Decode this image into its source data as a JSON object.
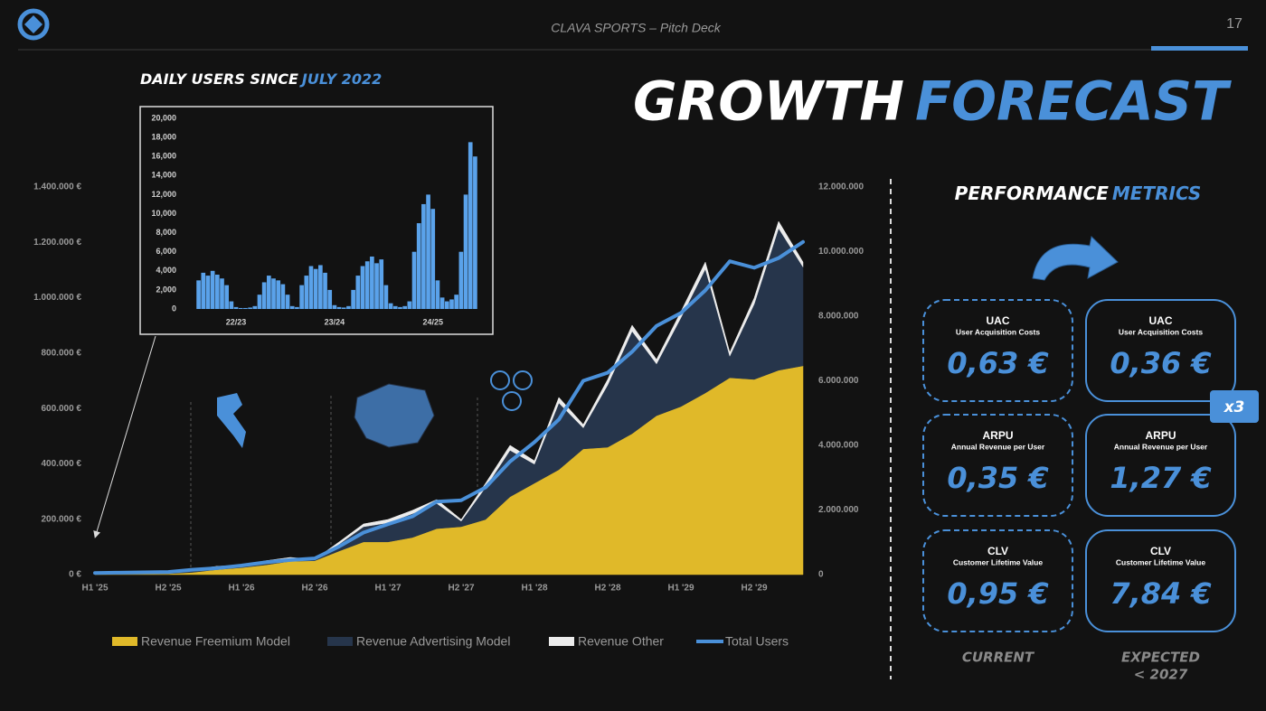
{
  "header": {
    "title": "CLAVA SPORTS – Pitch Deck",
    "page": "17"
  },
  "headline": [
    "GROWTH",
    "FORECAST"
  ],
  "chart_data": [
    {
      "type": "area",
      "categories": [
        "H1 '25",
        null,
        null,
        "H2 '25",
        null,
        null,
        "H1 '26",
        null,
        null,
        "H2 '26",
        null,
        null,
        "H1 '27",
        null,
        null,
        "H2 '27",
        null,
        null,
        "H1 '28",
        null,
        null,
        "H2 '28",
        null,
        null,
        "H1 '29",
        null,
        null,
        "H2 '29",
        null,
        null
      ],
      "series": [
        {
          "name": "Revenue Freemium Model",
          "type": "area",
          "color": "#e0b929",
          "values": [
            1000,
            1500,
            2000,
            3000,
            8000,
            18000,
            25000,
            35000,
            48000,
            50000,
            85000,
            118000,
            118000,
            134000,
            166000,
            173000,
            199000,
            281000,
            330000,
            379000,
            454000,
            460000,
            509000,
            574000,
            607000,
            656000,
            711000,
            705000,
            738000,
            754000
          ]
        },
        {
          "name": "Revenue Advertising Model",
          "type": "area",
          "color": "#26354b",
          "values": [
            2000,
            2500,
            3000,
            4000,
            7000,
            8000,
            6000,
            10000,
            8000,
            3000,
            25000,
            55000,
            69000,
            86000,
            91000,
            20000,
            116000,
            168000,
            69000,
            241000,
            76000,
            225000,
            370000,
            187000,
            321000,
            448000,
            78000,
            272000,
            513000,
            357000
          ]
        },
        {
          "name": "Revenue Other",
          "type": "area",
          "color": "#ececec",
          "values": [
            1000,
            1000,
            1000,
            1000,
            3000,
            4000,
            3000,
            5000,
            6000,
            2000,
            8000,
            10000,
            12000,
            12000,
            14000,
            6000,
            15000,
            18000,
            12000,
            20000,
            12000,
            20000,
            22000,
            16000,
            22000,
            25000,
            14000,
            22000,
            25000,
            18000
          ]
        },
        {
          "name": "Total Users",
          "type": "line",
          "axis": "y2",
          "color": "#4a90d9",
          "values": [
            50000,
            60000,
            70000,
            80000,
            150000,
            200000,
            280000,
            380000,
            450000,
            500000,
            870000,
            1300000,
            1560000,
            1800000,
            2260000,
            2300000,
            2700000,
            3500000,
            4100000,
            4800000,
            6000000,
            6250000,
            6900000,
            7700000,
            8100000,
            8800000,
            9700000,
            9500000,
            9800000,
            10300000
          ]
        }
      ],
      "ylim": [
        0,
        1400000
      ],
      "yticks": [
        {
          "value": 0,
          "label": "0 €"
        },
        {
          "value": 200000,
          "label": "200.000 €"
        },
        {
          "value": 400000,
          "label": "400.000 €"
        },
        {
          "value": 600000,
          "label": "600.000 €"
        },
        {
          "value": 800000,
          "label": "800.000 €"
        },
        {
          "value": 1000000,
          "label": "1.000.000 €"
        },
        {
          "value": 1200000,
          "label": "1.200.000 €"
        },
        {
          "value": 1400000,
          "label": "1.400.000 €"
        }
      ],
      "y2lim": [
        0,
        12000000
      ],
      "y2ticks": [
        0,
        {
          "value": 2000000,
          "label": "2.000.000"
        },
        {
          "value": 4000000,
          "label": "4.000.000"
        },
        {
          "value": 6000000,
          "label": "6.000.000"
        },
        {
          "value": 8000000,
          "label": "8.000.000"
        },
        {
          "value": 10000000,
          "label": "10.000.000"
        },
        {
          "value": 12000000,
          "label": "12.000.000"
        }
      ],
      "grid": false,
      "legend": "bottom"
    },
    {
      "type": "bar",
      "title_parts": [
        "DAILY USERS SINCE",
        "JULY 2022"
      ],
      "color": "#5aa2ea",
      "categories": [
        null,
        null,
        null,
        null,
        null,
        null,
        null,
        null,
        "22/23",
        null,
        null,
        null,
        null,
        null,
        null,
        null,
        null,
        null,
        null,
        null,
        null,
        null,
        null,
        null,
        null,
        null,
        null,
        null,
        null,
        "23/24",
        null,
        null,
        null,
        null,
        null,
        null,
        null,
        null,
        null,
        null,
        null,
        null,
        null,
        null,
        null,
        null,
        null,
        null,
        null,
        null,
        "24/25",
        null,
        null,
        null,
        null,
        null,
        null,
        null,
        null,
        null
      ],
      "values": [
        3000,
        3800,
        3500,
        4000,
        3600,
        3200,
        2500,
        800,
        200,
        100,
        100,
        150,
        300,
        1500,
        2800,
        3500,
        3200,
        3000,
        2600,
        1500,
        300,
        200,
        2500,
        3500,
        4500,
        4200,
        4600,
        3800,
        2000,
        400,
        200,
        150,
        300,
        2000,
        3500,
        4500,
        5000,
        5500,
        4800,
        5200,
        2500,
        600,
        300,
        200,
        300,
        800,
        6000,
        9000,
        11000,
        12000,
        10500,
        3000,
        1200,
        800,
        1000,
        1500,
        6000,
        12000,
        17500,
        16000
      ],
      "ylim": [
        0,
        20000
      ],
      "yticks": [
        0,
        {
          "value": 2000,
          "label": "2,000"
        },
        {
          "value": 4000,
          "label": "4,000"
        },
        {
          "value": 6000,
          "label": "6,000"
        },
        {
          "value": 8000,
          "label": "8,000"
        },
        {
          "value": 10000,
          "label": "10,000"
        },
        {
          "value": 12000,
          "label": "12,000"
        },
        {
          "value": 14000,
          "label": "14,000"
        },
        {
          "value": 16000,
          "label": "16,000"
        },
        {
          "value": 18000,
          "label": "18,000"
        },
        {
          "value": 20000,
          "label": "20,000"
        }
      ],
      "grid": false
    }
  ],
  "metrics": {
    "title": [
      "PERFORMANCE",
      "METRICS"
    ],
    "multiplier": "x3",
    "columns": [
      {
        "label": "CURRENT"
      },
      {
        "label": "EXPECTED",
        "sub": "< 2027"
      }
    ],
    "rows": [
      {
        "name": "UAC",
        "full": "User Acquisition Costs",
        "current": "0,63 €",
        "expected": "0,36 €"
      },
      {
        "name": "ARPU",
        "full": "Annual Revenue per User",
        "current": "0,35 €",
        "expected": "1,27 €"
      },
      {
        "name": "CLV",
        "full": "Customer Lifetime Value",
        "current": "0,95 €",
        "expected": "7,84 €"
      }
    ]
  }
}
